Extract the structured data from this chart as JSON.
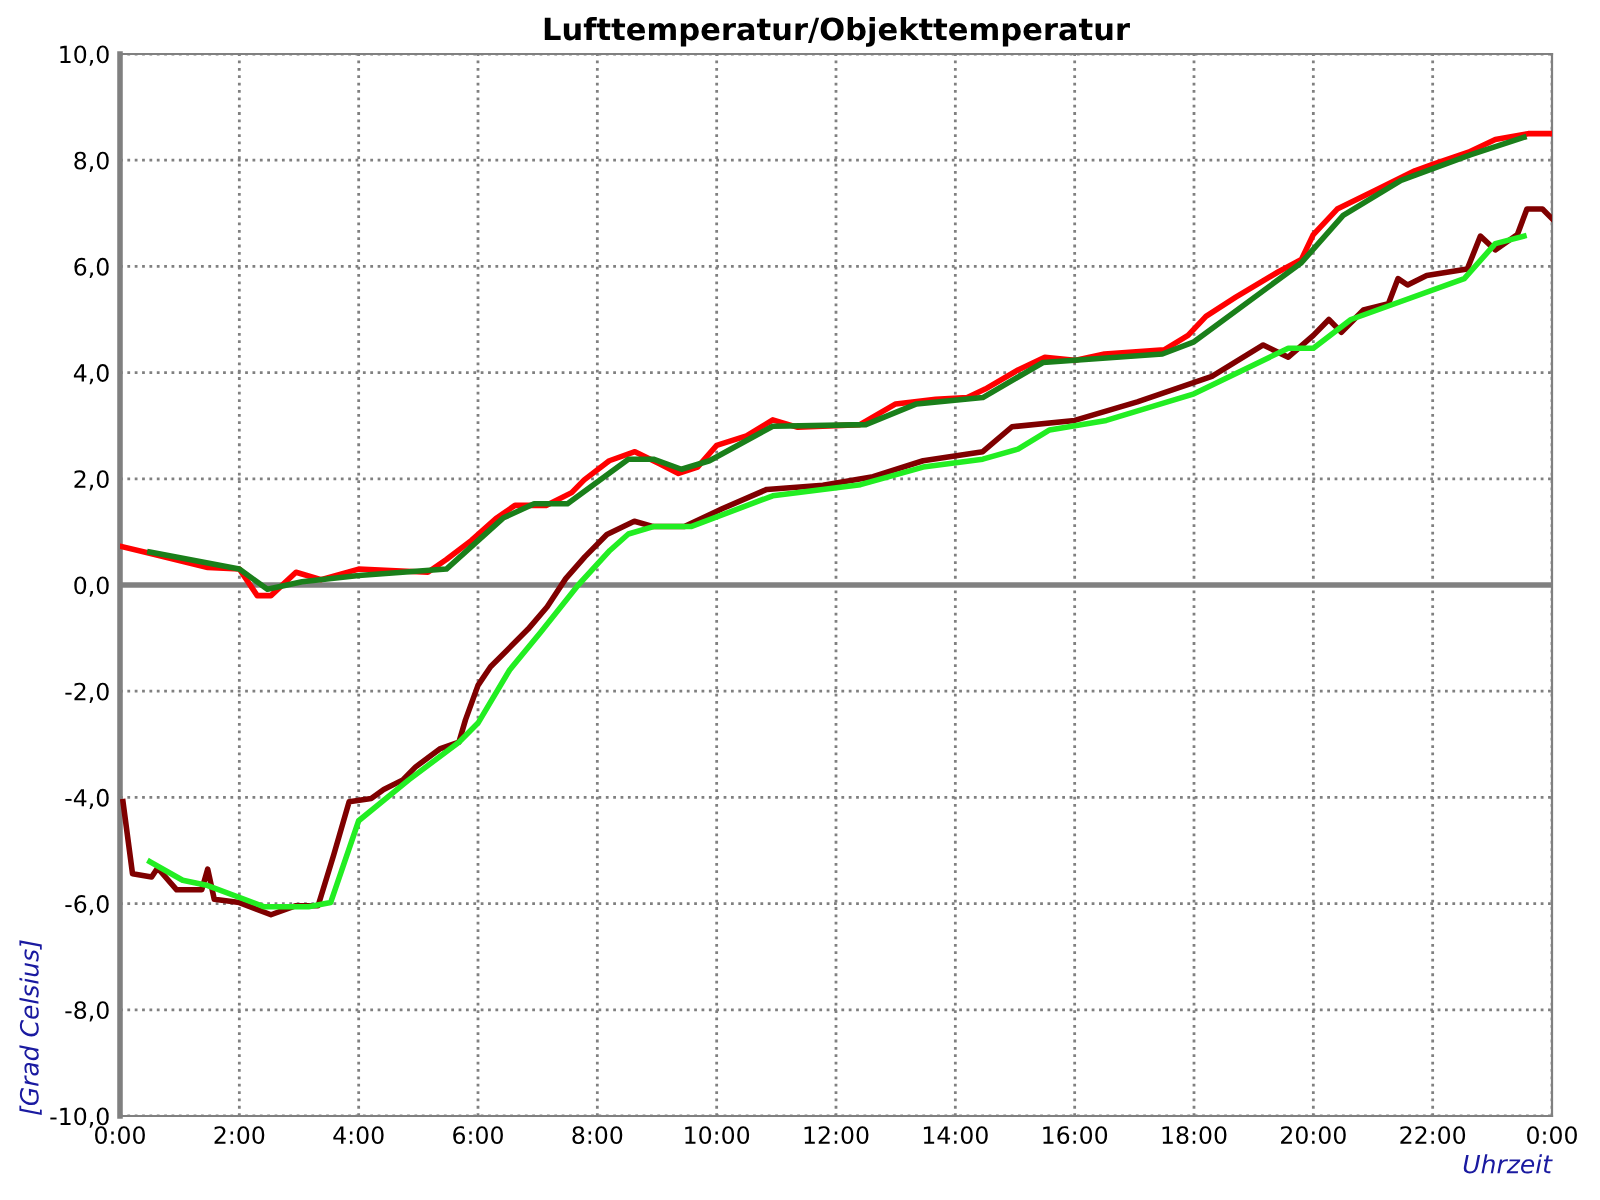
{
  "chart_data": {
    "type": "line",
    "title": "Lufttemperatur/Objekttemperatur",
    "xlabel": "Uhrzeit",
    "ylabel": "[Grad Celsius]",
    "xlim": [
      0,
      24
    ],
    "ylim": [
      -10,
      10
    ],
    "xticks": [
      {
        "value": 0,
        "label": "0:00"
      },
      {
        "value": 2,
        "label": "2:00"
      },
      {
        "value": 4,
        "label": "4:00"
      },
      {
        "value": 6,
        "label": "6:00"
      },
      {
        "value": 8,
        "label": "8:00"
      },
      {
        "value": 10,
        "label": "10:00"
      },
      {
        "value": 12,
        "label": "12:00"
      },
      {
        "value": 14,
        "label": "14:00"
      },
      {
        "value": 16,
        "label": "16:00"
      },
      {
        "value": 18,
        "label": "18:00"
      },
      {
        "value": 20,
        "label": "20:00"
      },
      {
        "value": 22,
        "label": "22:00"
      },
      {
        "value": 24,
        "label": "0:00"
      }
    ],
    "yticks": [
      {
        "value": -10,
        "label": "-10,0"
      },
      {
        "value": -8,
        "label": "-8,0"
      },
      {
        "value": -6,
        "label": "-6,0"
      },
      {
        "value": -4,
        "label": "-4,0"
      },
      {
        "value": -2,
        "label": "-2,0"
      },
      {
        "value": 0,
        "label": "0,0"
      },
      {
        "value": 2,
        "label": "2,0"
      },
      {
        "value": 4,
        "label": "4,0"
      },
      {
        "value": 6,
        "label": "6,0"
      },
      {
        "value": 8,
        "label": "8,0"
      },
      {
        "value": 10,
        "label": "10,0"
      }
    ],
    "grid": true,
    "legend": false,
    "line_style": "solid",
    "marker": "none",
    "ref_lines": [
      {
        "axis": "y",
        "value": 0,
        "color": "#808080",
        "line_style": "solid"
      }
    ],
    "series": [
      {
        "color": "#ff0000",
        "x": [
          0,
          0.53,
          1.47,
          2.0,
          2.3,
          2.53,
          2.95,
          3.37,
          4.0,
          5.16,
          5.47,
          5.89,
          6.3,
          6.62,
          7.15,
          7.57,
          7.78,
          8.2,
          8.63,
          9.05,
          9.36,
          9.68,
          10.0,
          10.5,
          10.94,
          11.36,
          12.4,
          13.0,
          13.67,
          14.2,
          14.5,
          15.05,
          15.5,
          16,
          16.5,
          17.5,
          17.9,
          18.2,
          18.7,
          19.4,
          19.8,
          20.0,
          20.4,
          21.05,
          21.7,
          22,
          22.6,
          23.05,
          23.6,
          24
        ],
        "values": [
          0.73,
          0.59,
          0.33,
          0.3,
          -0.2,
          -0.2,
          0.24,
          0.1,
          0.3,
          0.24,
          0.48,
          0.84,
          1.25,
          1.5,
          1.5,
          1.74,
          1.98,
          2.34,
          2.51,
          2.28,
          2.1,
          2.22,
          2.63,
          2.81,
          3.11,
          2.97,
          3.02,
          3.41,
          3.5,
          3.53,
          3.69,
          4.05,
          4.29,
          4.23,
          4.35,
          4.43,
          4.7,
          5.06,
          5.42,
          5.89,
          6.13,
          6.6,
          7.08,
          7.44,
          7.8,
          7.92,
          8.15,
          8.39,
          8.5,
          8.5
        ]
      },
      {
        "color": "#1a7f1a",
        "x": [
          0.5,
          2.0,
          2.47,
          3.05,
          4.0,
          5.47,
          6.42,
          6.94,
          7.5,
          8.52,
          8.94,
          9.41,
          9.88,
          10.94,
          12.5,
          13.35,
          14.46,
          15.47,
          17.47,
          18,
          19.8,
          20.5,
          21.47,
          22.63,
          23.53
        ],
        "values": [
          0.62,
          0.3,
          -0.08,
          0.06,
          0.18,
          0.3,
          1.26,
          1.53,
          1.53,
          2.37,
          2.37,
          2.18,
          2.34,
          2.99,
          3.02,
          3.41,
          3.53,
          4.19,
          4.35,
          4.58,
          6.07,
          6.96,
          7.62,
          8.1,
          8.43
        ]
      },
      {
        "color": "#7f0000",
        "x": [
          0.05,
          0.21,
          0.53,
          0.63,
          0.95,
          1.37,
          1.47,
          1.58,
          2.0,
          2.53,
          2.95,
          3.32,
          3.58,
          3.84,
          4.21,
          4.42,
          4.74,
          4.95,
          5.37,
          5.68,
          5.79,
          6.0,
          6.21,
          6.53,
          6.84,
          7.16,
          7.47,
          7.79,
          8.16,
          8.62,
          8.94,
          9.46,
          10.1,
          10.84,
          11.78,
          12.62,
          13.46,
          14.46,
          14.95,
          16,
          17.05,
          18.3,
          19.16,
          19.58,
          20,
          20.26,
          20.47,
          20.84,
          21.26,
          21.42,
          21.58,
          21.9,
          22.58,
          22.8,
          23.05,
          23.42,
          23.58,
          23.84,
          24
        ],
        "values": [
          -4.08,
          -5.44,
          -5.5,
          -5.33,
          -5.74,
          -5.74,
          -5.35,
          -5.92,
          -5.98,
          -6.21,
          -6.04,
          -6.04,
          -5.09,
          -4.08,
          -4.02,
          -3.85,
          -3.67,
          -3.43,
          -3.08,
          -2.96,
          -2.54,
          -1.89,
          -1.54,
          -1.18,
          -0.83,
          -0.41,
          0.12,
          0.53,
          0.95,
          1.2,
          1.1,
          1.1,
          1.44,
          1.8,
          1.88,
          2.04,
          2.34,
          2.51,
          2.98,
          3.1,
          3.45,
          3.93,
          4.52,
          4.29,
          4.7,
          5.0,
          4.76,
          5.18,
          5.3,
          5.77,
          5.65,
          5.83,
          5.95,
          6.57,
          6.31,
          6.6,
          7.08,
          7.08,
          6.9
        ]
      },
      {
        "color": "#22ee22",
        "x": [
          0.5,
          1.05,
          1.47,
          2.42,
          3.16,
          3.53,
          4.0,
          4.84,
          5.68,
          6.0,
          6.53,
          7.05,
          7.68,
          8.21,
          8.52,
          8.94,
          9.57,
          10.94,
          12.41,
          13.46,
          14.46,
          15.05,
          15.58,
          16.53,
          18,
          19.58,
          20,
          20.63,
          22.53,
          23.05,
          23.53
        ],
        "values": [
          -5.21,
          -5.56,
          -5.66,
          -6.06,
          -6.06,
          -5.98,
          -4.44,
          -3.67,
          -2.96,
          -2.6,
          -1.6,
          -0.89,
          0.0,
          0.65,
          0.96,
          1.1,
          1.1,
          1.68,
          1.89,
          2.22,
          2.37,
          2.56,
          2.92,
          3.1,
          3.6,
          4.46,
          4.46,
          5.0,
          5.77,
          6.43,
          6.57
        ]
      }
    ]
  }
}
